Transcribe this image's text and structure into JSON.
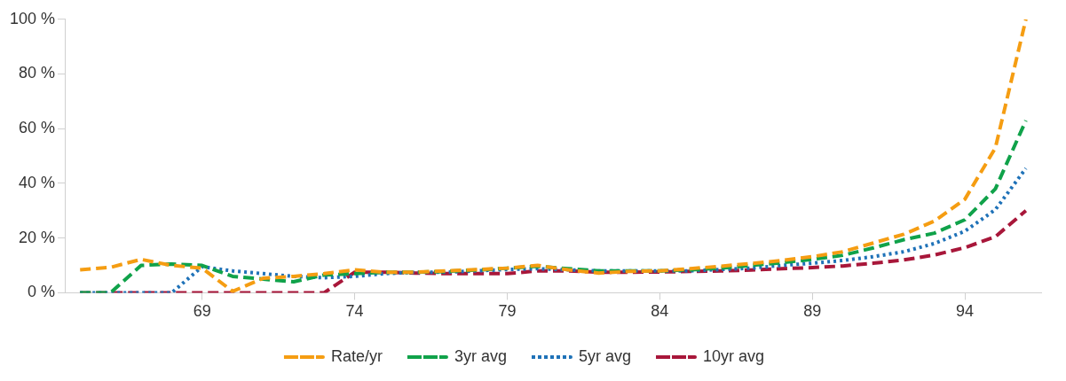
{
  "chart_data": {
    "type": "line",
    "categories": [
      null,
      null,
      null,
      null,
      "69",
      null,
      null,
      null,
      null,
      "74",
      null,
      null,
      null,
      null,
      "79",
      null,
      null,
      null,
      null,
      "84",
      null,
      null,
      null,
      null,
      "89",
      null,
      null,
      null,
      null,
      "94",
      null,
      null
    ],
    "series": [
      {
        "name": "Rate/yr",
        "color": "#f59d12",
        "line_style": "dashed",
        "values": [
          8.4,
          9.3,
          12.2,
          10,
          9,
          0.5,
          5.3,
          6,
          7,
          8.4,
          7.5,
          7.5,
          8,
          8.5,
          9,
          10,
          8.4,
          7.2,
          7.8,
          8,
          8.8,
          9.7,
          10.7,
          11.8,
          13.2,
          15,
          18.2,
          21.4,
          26.2,
          34.2,
          53,
          100
        ]
      },
      {
        "name": "3yr avg",
        "color": "#10a24a",
        "line_style": "dashed",
        "values": [
          0,
          0,
          10,
          10.5,
          10,
          6,
          5,
          4,
          6.5,
          7,
          7.5,
          7.5,
          7.8,
          8.3,
          9,
          9.7,
          8.8,
          8,
          8,
          8,
          8.4,
          9,
          10,
          11,
          12.2,
          13.7,
          16.4,
          19.4,
          21.8,
          26.7,
          38,
          63
        ]
      },
      {
        "name": "5yr avg",
        "color": "#1f72b8",
        "line_style": "dotted",
        "values": [
          0,
          0,
          0,
          0,
          9.5,
          8,
          7,
          6,
          5.5,
          6,
          7,
          7.5,
          7.5,
          8,
          8.5,
          8.8,
          8.4,
          8,
          8,
          8,
          8,
          8.5,
          9,
          10,
          10.8,
          11.8,
          13.2,
          15,
          18,
          22.5,
          30.4,
          45.5
        ]
      },
      {
        "name": "10yr avg",
        "color": "#a8173a",
        "line_style": "dashed",
        "values": [
          0,
          0,
          0,
          0,
          0,
          0,
          0,
          0,
          0,
          7.5,
          7.5,
          7.2,
          7,
          7,
          7,
          8,
          8,
          7.5,
          7.5,
          7.6,
          7.8,
          8,
          8.3,
          8.8,
          9.2,
          9.8,
          10.8,
          12,
          13.8,
          16.5,
          20.5,
          30
        ]
      }
    ],
    "ylim": [
      0,
      100
    ],
    "yticks": [
      {
        "value": 0,
        "label": "0 %"
      },
      {
        "value": 20,
        "label": "20 %"
      },
      {
        "value": 40,
        "label": "40 %"
      },
      {
        "value": 60,
        "label": "60 %"
      },
      {
        "value": 80,
        "label": "80 %"
      },
      {
        "value": 100,
        "label": "100 %"
      }
    ],
    "grid": false,
    "legend": "bottom",
    "marker": "none"
  }
}
